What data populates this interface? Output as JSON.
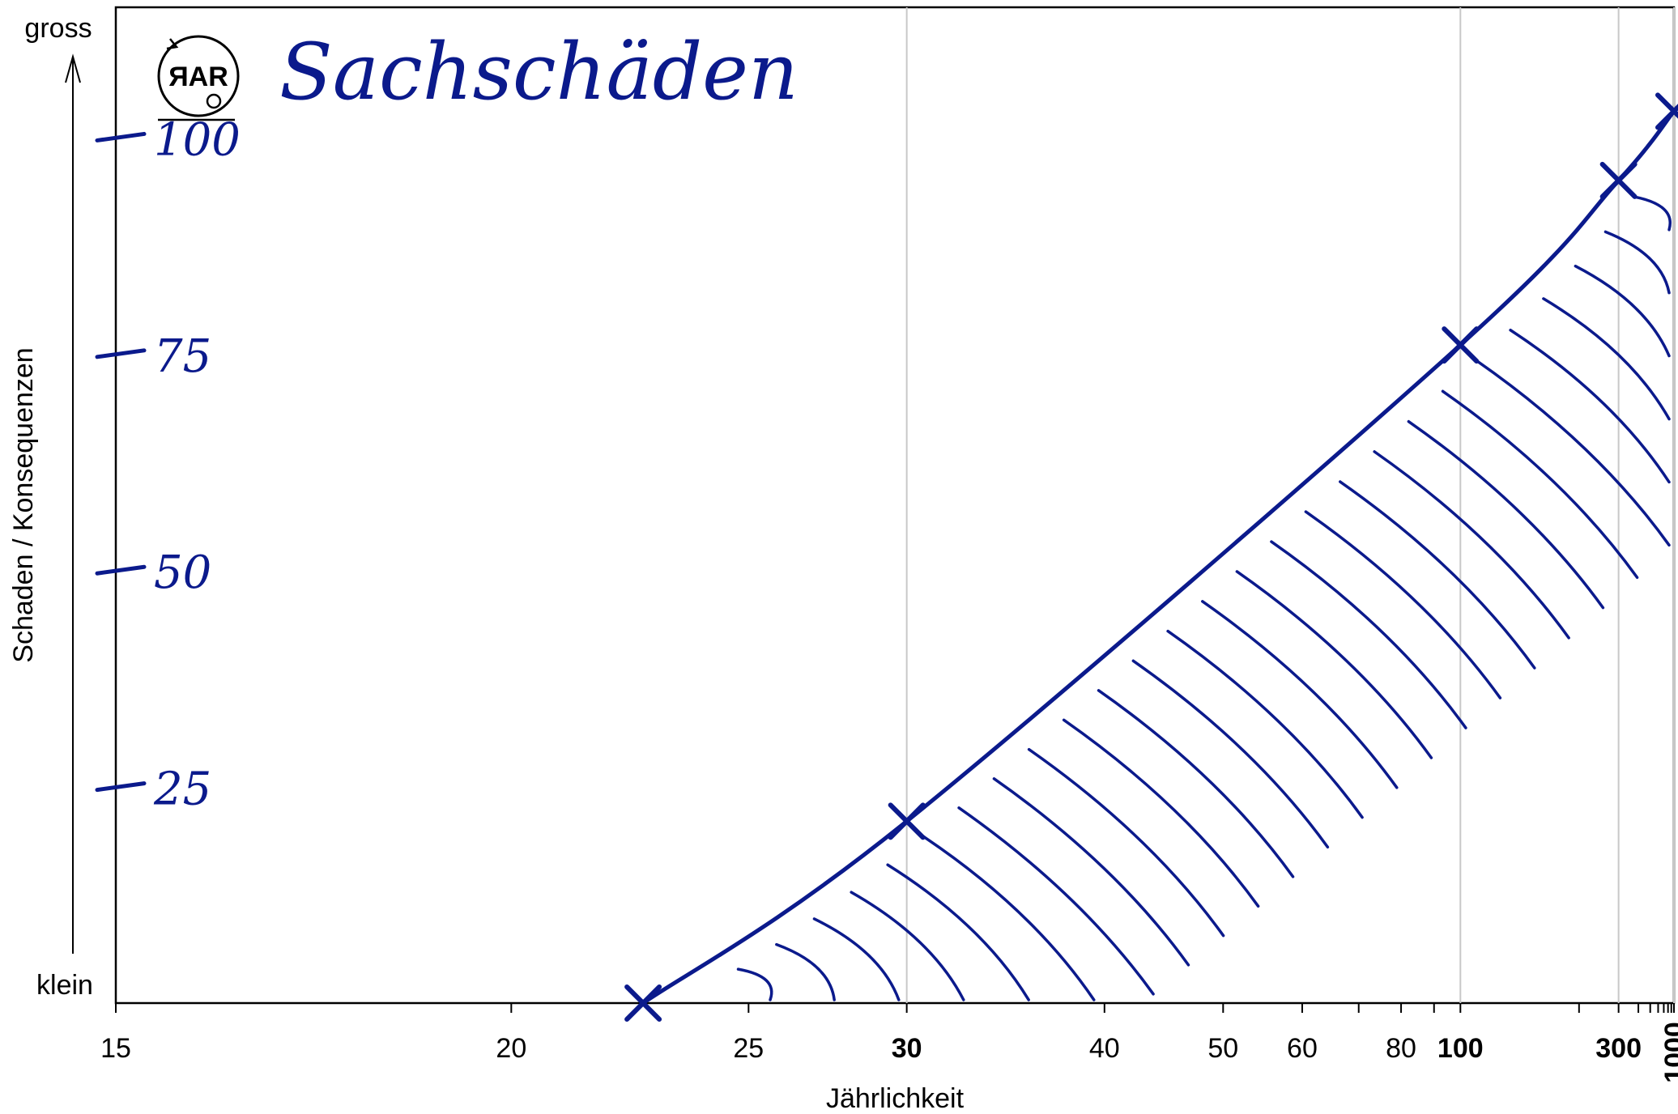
{
  "chart_data": {
    "type": "line",
    "title": "Sachschäden",
    "xlabel": "Jährlichkeit",
    "ylabel": "Schaden / Konsequenzen",
    "y_top_label": "gross",
    "y_bottom_label": "klein",
    "logo_text": "ЯAR",
    "x_scale": "reciprocal",
    "xlim": [
      15,
      1000
    ],
    "ylim": [
      0,
      115
    ],
    "x_ticks": [
      15,
      20,
      25,
      30,
      40,
      50,
      60,
      80,
      100,
      300,
      1000
    ],
    "x_tick_labels": [
      "15",
      "20",
      "25",
      "30",
      "40",
      "50",
      "60",
      "80",
      "100",
      "300",
      "1000"
    ],
    "x_tick_bold": [
      "30",
      "100",
      "300",
      "1000"
    ],
    "x_minor_ticks": [
      70,
      90,
      200,
      400,
      500,
      600,
      700,
      800,
      900
    ],
    "x_grid": [
      30,
      100,
      300,
      1000
    ],
    "y_ticks": [
      25,
      50,
      75,
      100
    ],
    "y_tick_labels": [
      "25",
      "50",
      "75",
      "100"
    ],
    "series": [
      {
        "values": [
          {
            "x": 22.5,
            "y": 0
          },
          {
            "x": 30,
            "y": 21
          },
          {
            "x": 100,
            "y": 76
          },
          {
            "x": 300,
            "y": 95
          },
          {
            "x": 1000,
            "y": 103
          }
        ]
      }
    ],
    "area_hatched": "below curve (right side)",
    "color": "#0b1a8c"
  }
}
